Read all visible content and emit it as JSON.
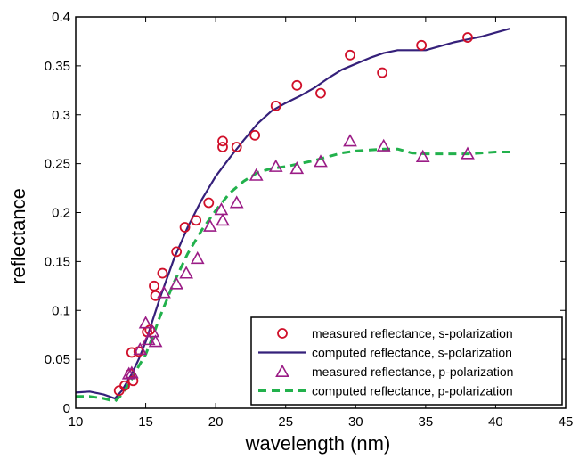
{
  "chart_data": {
    "type": "scatter",
    "title": "",
    "xlabel": "wavelength (nm)",
    "ylabel": "reflectance",
    "xlim": [
      10,
      45
    ],
    "ylim": [
      0,
      0.4
    ],
    "xticks": [
      10,
      15,
      20,
      25,
      30,
      35,
      40,
      45
    ],
    "yticks": [
      0,
      0.05,
      0.1,
      0.15,
      0.2,
      0.25,
      0.3,
      0.35,
      0.4
    ],
    "xtick_labels": [
      "10",
      "15",
      "20",
      "25",
      "30",
      "35",
      "40",
      "45"
    ],
    "ytick_labels": [
      "0",
      "0.05",
      "0.1",
      "0.15",
      "0.2",
      "0.25",
      "0.3",
      "0.35",
      "0.4"
    ],
    "grid": false,
    "legend_position": "lower-right",
    "colors": {
      "measured_s": "#d0102a",
      "computed_s": "#35207a",
      "measured_p": "#9b1c86",
      "computed_p": "#22b14c"
    },
    "series": [
      {
        "name": "measured reflectance, s-polarization",
        "kind": "scatter",
        "marker": "circle",
        "points": [
          [
            13.1,
            0.018
          ],
          [
            13.5,
            0.023
          ],
          [
            13.9,
            0.035
          ],
          [
            14.0,
            0.057
          ],
          [
            14.1,
            0.028
          ],
          [
            14.5,
            0.058
          ],
          [
            15.1,
            0.078
          ],
          [
            15.3,
            0.08
          ],
          [
            15.6,
            0.125
          ],
          [
            15.7,
            0.115
          ],
          [
            16.2,
            0.138
          ],
          [
            17.2,
            0.16
          ],
          [
            17.8,
            0.185
          ],
          [
            18.6,
            0.192
          ],
          [
            19.5,
            0.21
          ],
          [
            20.5,
            0.267
          ],
          [
            20.5,
            0.273
          ],
          [
            21.5,
            0.267
          ],
          [
            22.8,
            0.279
          ],
          [
            24.3,
            0.309
          ],
          [
            25.8,
            0.33
          ],
          [
            27.5,
            0.322
          ],
          [
            29.6,
            0.361
          ],
          [
            31.9,
            0.343
          ],
          [
            34.7,
            0.371
          ],
          [
            38.0,
            0.379
          ]
        ]
      },
      {
        "name": "computed reflectance, s-polarization",
        "kind": "line",
        "points": [
          [
            10,
            0.016
          ],
          [
            11,
            0.017
          ],
          [
            12,
            0.014
          ],
          [
            12.8,
            0.01
          ],
          [
            13.3,
            0.018
          ],
          [
            14,
            0.035
          ],
          [
            14.5,
            0.05
          ],
          [
            15,
            0.068
          ],
          [
            15.5,
            0.09
          ],
          [
            16,
            0.112
          ],
          [
            17,
            0.152
          ],
          [
            18,
            0.185
          ],
          [
            19,
            0.213
          ],
          [
            20,
            0.237
          ],
          [
            21,
            0.256
          ],
          [
            22,
            0.274
          ],
          [
            23,
            0.291
          ],
          [
            24,
            0.304
          ],
          [
            25,
            0.312
          ],
          [
            26,
            0.319
          ],
          [
            27,
            0.327
          ],
          [
            28,
            0.337
          ],
          [
            29,
            0.346
          ],
          [
            30,
            0.352
          ],
          [
            31,
            0.358
          ],
          [
            32,
            0.363
          ],
          [
            33,
            0.366
          ],
          [
            34,
            0.366
          ],
          [
            35,
            0.366
          ],
          [
            36,
            0.37
          ],
          [
            37,
            0.374
          ],
          [
            38,
            0.377
          ],
          [
            39,
            0.38
          ],
          [
            40,
            0.384
          ],
          [
            41,
            0.388
          ]
        ]
      },
      {
        "name": "measured reflectance, p-polarization",
        "kind": "scatter",
        "marker": "triangle",
        "points": [
          [
            13.8,
            0.035
          ],
          [
            14.0,
            0.036
          ],
          [
            14.6,
            0.06
          ],
          [
            15.0,
            0.087
          ],
          [
            15.2,
            0.07
          ],
          [
            15.5,
            0.078
          ],
          [
            15.7,
            0.068
          ],
          [
            16.3,
            0.118
          ],
          [
            17.2,
            0.127
          ],
          [
            17.9,
            0.138
          ],
          [
            18.7,
            0.153
          ],
          [
            19.6,
            0.186
          ],
          [
            20.4,
            0.203
          ],
          [
            20.5,
            0.192
          ],
          [
            21.5,
            0.21
          ],
          [
            22.9,
            0.238
          ],
          [
            24.3,
            0.247
          ],
          [
            25.8,
            0.245
          ],
          [
            27.5,
            0.252
          ],
          [
            29.6,
            0.273
          ],
          [
            32.0,
            0.268
          ],
          [
            34.8,
            0.257
          ],
          [
            38.0,
            0.26
          ]
        ]
      },
      {
        "name": "computed reflectance, p-polarization",
        "kind": "line",
        "dashed": true,
        "points": [
          [
            10,
            0.012
          ],
          [
            11,
            0.012
          ],
          [
            12,
            0.01
          ],
          [
            12.8,
            0.007
          ],
          [
            13.3,
            0.014
          ],
          [
            14,
            0.03
          ],
          [
            14.5,
            0.043
          ],
          [
            15,
            0.055
          ],
          [
            15.5,
            0.073
          ],
          [
            16,
            0.093
          ],
          [
            17,
            0.128
          ],
          [
            18,
            0.158
          ],
          [
            19,
            0.182
          ],
          [
            20,
            0.202
          ],
          [
            21,
            0.22
          ],
          [
            22,
            0.232
          ],
          [
            23,
            0.241
          ],
          [
            24,
            0.245
          ],
          [
            25,
            0.247
          ],
          [
            26,
            0.25
          ],
          [
            27,
            0.253
          ],
          [
            28,
            0.257
          ],
          [
            29,
            0.261
          ],
          [
            30,
            0.263
          ],
          [
            31,
            0.264
          ],
          [
            32,
            0.265
          ],
          [
            33,
            0.265
          ],
          [
            34,
            0.261
          ],
          [
            35,
            0.26
          ],
          [
            36,
            0.26
          ],
          [
            37,
            0.26
          ],
          [
            38,
            0.26
          ],
          [
            39,
            0.261
          ],
          [
            40,
            0.262
          ],
          [
            41,
            0.262
          ]
        ]
      }
    ]
  }
}
